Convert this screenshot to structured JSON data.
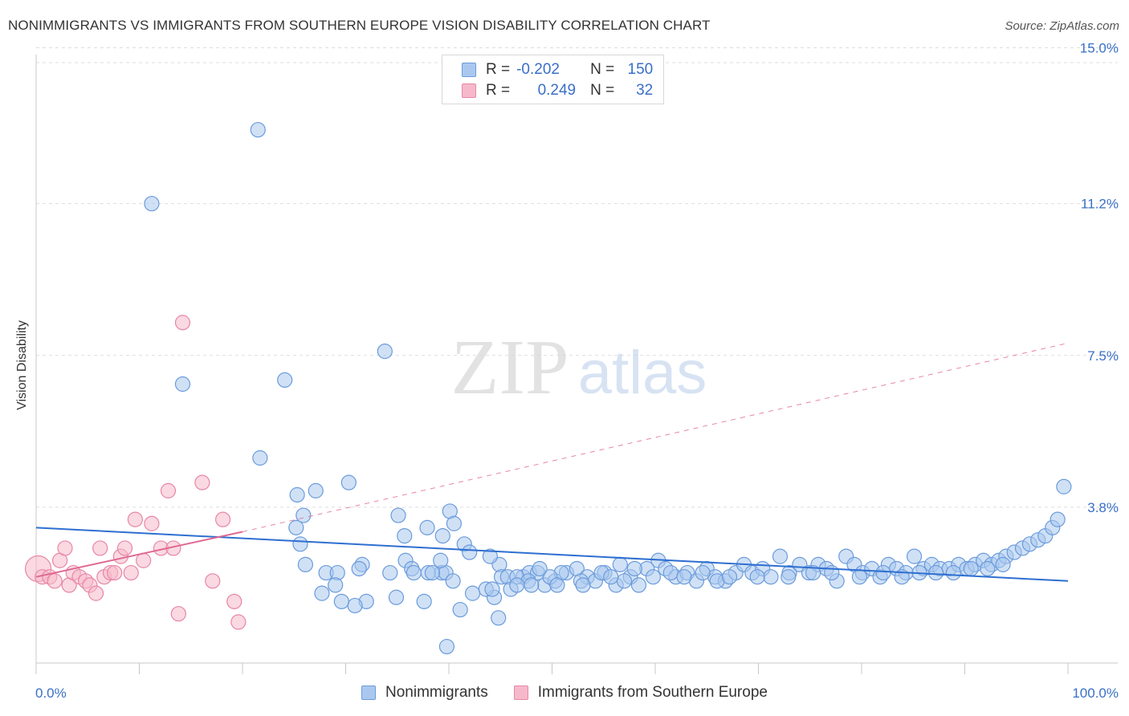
{
  "header": {
    "title": "NONIMMIGRANTS VS IMMIGRANTS FROM SOUTHERN EUROPE VISION DISABILITY CORRELATION CHART",
    "source": "Source: ZipAtlas.com"
  },
  "watermark": {
    "zip": "ZIP",
    "atlas": "atlas"
  },
  "legend": {
    "rows": [
      {
        "r_label": "R =",
        "r_value": "-0.202",
        "n_label": "N =",
        "n_value": "150"
      },
      {
        "r_label": "R =",
        "r_value": "0.249",
        "n_label": "N =",
        "n_value": "32"
      }
    ]
  },
  "colors": {
    "blue_fill": "#aac8ef",
    "blue_stroke": "#6b9bdb",
    "blue_line": "#2e6fd0",
    "pink_fill": "#f6b9cb",
    "pink_stroke": "#e886a6",
    "pink_line": "#e06892",
    "tick_text": "#3a6fc7",
    "grid": "#dddddd"
  },
  "chart_data": {
    "type": "scatter",
    "title": "NONIMMIGRANTS VS IMMIGRANTS FROM SOUTHERN EUROPE VISION DISABILITY CORRELATION CHART",
    "xlabel": "",
    "ylabel": "Vision Disability",
    "xlim": [
      0,
      100
    ],
    "ylim": [
      0,
      15.6
    ],
    "x_tick_labels": [
      "0.0%",
      "100.0%"
    ],
    "y_ticks": [
      3.8,
      7.5,
      11.2,
      15.0
    ],
    "y_tick_labels": [
      "3.8%",
      "7.5%",
      "11.2%",
      "15.0%"
    ],
    "grid": true,
    "legend_position": "bottom",
    "series": [
      {
        "name": "Nonimmigrants",
        "color": "blue",
        "points": [
          [
            21.5,
            13.0
          ],
          [
            11.2,
            11.2
          ],
          [
            14.2,
            6.8
          ],
          [
            24.1,
            6.9
          ],
          [
            33.8,
            7.6
          ],
          [
            21.7,
            5.0
          ],
          [
            25.3,
            4.1
          ],
          [
            27.1,
            4.2
          ],
          [
            30.3,
            4.4
          ],
          [
            35.1,
            3.6
          ],
          [
            25.9,
            3.6
          ],
          [
            40.1,
            3.7
          ],
          [
            25.6,
            2.9
          ],
          [
            37.9,
            3.3
          ],
          [
            39.4,
            3.1
          ],
          [
            41.5,
            2.9
          ],
          [
            42.0,
            2.7
          ],
          [
            26.1,
            2.4
          ],
          [
            28.1,
            2.2
          ],
          [
            29.2,
            2.2
          ],
          [
            31.6,
            2.4
          ],
          [
            35.8,
            2.5
          ],
          [
            36.4,
            2.3
          ],
          [
            38.0,
            2.2
          ],
          [
            39.3,
            2.2
          ],
          [
            39.7,
            2.2
          ],
          [
            29.0,
            1.9
          ],
          [
            34.3,
            2.2
          ],
          [
            39.2,
            2.5
          ],
          [
            44.9,
            2.4
          ],
          [
            44.0,
            2.6
          ],
          [
            45.1,
            2.1
          ],
          [
            47.2,
            2.1
          ],
          [
            45.7,
            2.1
          ],
          [
            47.8,
            2.2
          ],
          [
            49.3,
            1.9
          ],
          [
            50.3,
            2.0
          ],
          [
            51.4,
            2.2
          ],
          [
            52.4,
            2.3
          ],
          [
            53.4,
            2.1
          ],
          [
            54.2,
            2.0
          ],
          [
            55.1,
            2.2
          ],
          [
            56.2,
            1.9
          ],
          [
            56.6,
            2.4
          ],
          [
            57.6,
            2.1
          ],
          [
            58.4,
            1.9
          ],
          [
            59.2,
            2.3
          ],
          [
            60.3,
            2.5
          ],
          [
            61.0,
            2.3
          ],
          [
            62.0,
            2.1
          ],
          [
            63.1,
            2.2
          ],
          [
            64.0,
            2.0
          ],
          [
            65.0,
            2.3
          ],
          [
            65.8,
            2.1
          ],
          [
            66.8,
            2.0
          ],
          [
            67.8,
            2.2
          ],
          [
            68.6,
            2.4
          ],
          [
            69.4,
            2.2
          ],
          [
            70.4,
            2.3
          ],
          [
            71.2,
            2.1
          ],
          [
            72.1,
            2.6
          ],
          [
            73.0,
            2.2
          ],
          [
            74.0,
            2.4
          ],
          [
            74.9,
            2.2
          ],
          [
            75.8,
            2.4
          ],
          [
            76.6,
            2.3
          ],
          [
            77.6,
            2.0
          ],
          [
            78.5,
            2.6
          ],
          [
            79.3,
            2.4
          ],
          [
            80.1,
            2.2
          ],
          [
            81.0,
            2.3
          ],
          [
            81.8,
            2.1
          ],
          [
            82.6,
            2.4
          ],
          [
            83.4,
            2.3
          ],
          [
            84.3,
            2.2
          ],
          [
            85.1,
            2.6
          ],
          [
            86.0,
            2.3
          ],
          [
            86.8,
            2.4
          ],
          [
            87.6,
            2.3
          ],
          [
            88.5,
            2.3
          ],
          [
            89.4,
            2.4
          ],
          [
            90.2,
            2.3
          ],
          [
            91.0,
            2.4
          ],
          [
            91.8,
            2.5
          ],
          [
            92.6,
            2.4
          ],
          [
            93.3,
            2.5
          ],
          [
            94.0,
            2.6
          ],
          [
            94.8,
            2.7
          ],
          [
            95.6,
            2.8
          ],
          [
            96.3,
            2.9
          ],
          [
            97.1,
            3.0
          ],
          [
            97.8,
            3.1
          ],
          [
            98.5,
            3.3
          ],
          [
            99.0,
            3.5
          ],
          [
            99.6,
            4.3
          ],
          [
            66.0,
            2.0
          ],
          [
            61.5,
            2.2
          ],
          [
            58.0,
            2.3
          ],
          [
            54.8,
            2.2
          ],
          [
            52.8,
            2.0
          ],
          [
            50.9,
            2.2
          ],
          [
            48.6,
            2.2
          ],
          [
            46.6,
            2.1
          ],
          [
            44.4,
            1.6
          ],
          [
            43.6,
            1.8
          ],
          [
            40.4,
            2.0
          ],
          [
            38.4,
            2.2
          ],
          [
            36.6,
            2.2
          ],
          [
            34.9,
            1.6
          ],
          [
            32.0,
            1.5
          ],
          [
            30.9,
            1.4
          ],
          [
            29.6,
            1.5
          ],
          [
            27.7,
            1.7
          ],
          [
            37.6,
            1.5
          ],
          [
            42.3,
            1.7
          ],
          [
            44.2,
            1.8
          ],
          [
            46.0,
            1.8
          ],
          [
            47.7,
            2.0
          ],
          [
            49.8,
            2.1
          ],
          [
            57.0,
            2.0
          ],
          [
            59.8,
            2.1
          ],
          [
            62.8,
            2.1
          ],
          [
            64.6,
            2.2
          ],
          [
            67.2,
            2.1
          ],
          [
            69.9,
            2.1
          ],
          [
            72.9,
            2.1
          ],
          [
            75.3,
            2.2
          ],
          [
            77.1,
            2.2
          ],
          [
            79.8,
            2.1
          ],
          [
            82.1,
            2.2
          ],
          [
            83.9,
            2.1
          ],
          [
            85.6,
            2.2
          ],
          [
            87.2,
            2.2
          ],
          [
            88.9,
            2.2
          ],
          [
            90.6,
            2.3
          ],
          [
            92.2,
            2.3
          ],
          [
            93.7,
            2.4
          ],
          [
            46.6,
            1.9
          ],
          [
            48.0,
            1.9
          ],
          [
            48.8,
            2.3
          ],
          [
            50.5,
            1.9
          ],
          [
            53.0,
            1.9
          ],
          [
            55.7,
            2.1
          ],
          [
            39.8,
            0.4
          ],
          [
            44.8,
            1.1
          ],
          [
            41.1,
            1.3
          ],
          [
            25.2,
            3.3
          ],
          [
            35.7,
            3.1
          ],
          [
            40.5,
            3.4
          ],
          [
            31.3,
            2.3
          ]
        ]
      },
      {
        "name": "Immigrants from Southern Europe",
        "color": "pink",
        "points": [
          [
            0.2,
            2.3
          ],
          [
            0.6,
            2.1
          ],
          [
            1.3,
            2.1
          ],
          [
            2.3,
            2.5
          ],
          [
            2.8,
            2.8
          ],
          [
            3.2,
            1.9
          ],
          [
            3.6,
            2.2
          ],
          [
            4.2,
            2.1
          ],
          [
            4.8,
            2.0
          ],
          [
            5.2,
            1.9
          ],
          [
            5.8,
            1.7
          ],
          [
            6.2,
            2.8
          ],
          [
            6.6,
            2.1
          ],
          [
            7.2,
            2.2
          ],
          [
            7.6,
            2.2
          ],
          [
            8.2,
            2.6
          ],
          [
            8.6,
            2.8
          ],
          [
            9.2,
            2.2
          ],
          [
            9.6,
            3.5
          ],
          [
            10.4,
            2.5
          ],
          [
            11.2,
            3.4
          ],
          [
            12.1,
            2.8
          ],
          [
            12.8,
            4.2
          ],
          [
            13.3,
            2.8
          ],
          [
            13.8,
            1.2
          ],
          [
            14.2,
            8.3
          ],
          [
            16.1,
            4.4
          ],
          [
            17.1,
            2.0
          ],
          [
            18.1,
            3.5
          ],
          [
            19.2,
            1.5
          ],
          [
            19.6,
            1.0
          ],
          [
            1.8,
            2.0
          ]
        ]
      }
    ],
    "trendlines": [
      {
        "series": "Nonimmigrants",
        "from": [
          0,
          3.3
        ],
        "to": [
          100,
          2.0
        ],
        "style": "solid"
      },
      {
        "series": "Immigrants from Southern Europe",
        "from": [
          0,
          2.1
        ],
        "to": [
          20,
          3.2
        ],
        "style": "solid"
      },
      {
        "series": "Immigrants from Southern Europe",
        "from": [
          20,
          3.2
        ],
        "to": [
          100,
          7.8
        ],
        "style": "dashed"
      }
    ]
  }
}
